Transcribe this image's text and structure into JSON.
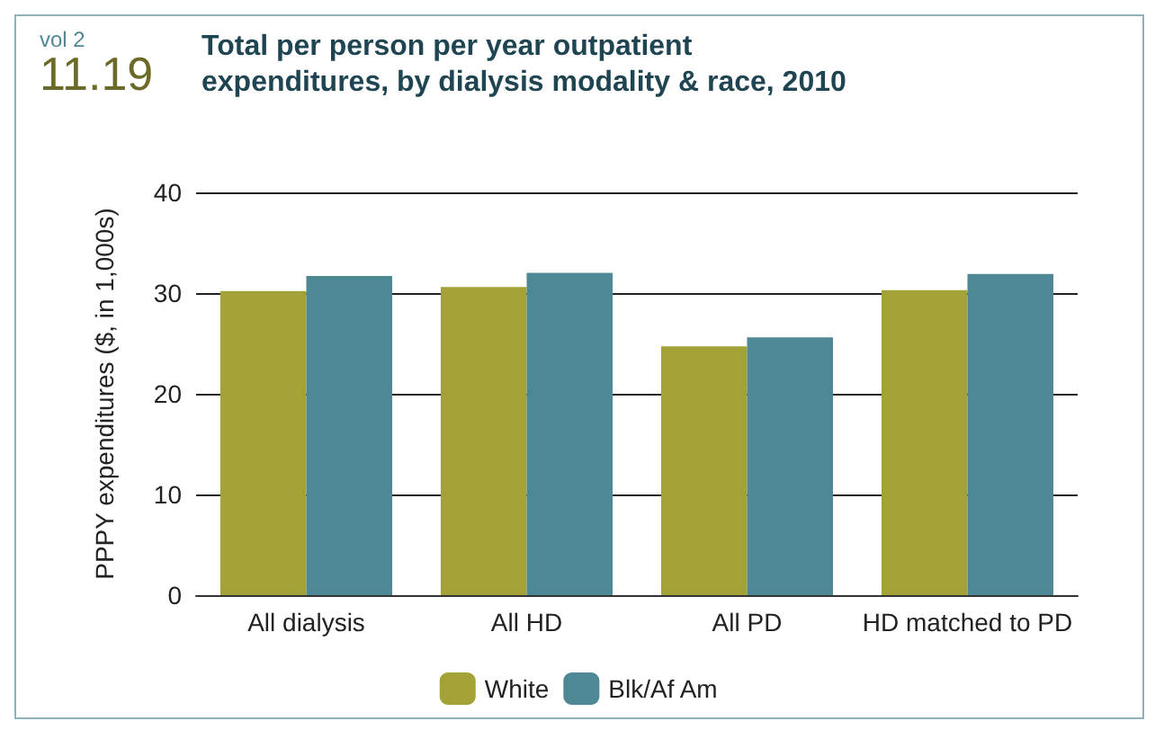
{
  "chart_data": {
    "type": "bar",
    "title": "Total per person per year outpatient\nexpenditures, by dialysis modality & race, 2010",
    "annotations": [
      "vol 2",
      "11.19"
    ],
    "ylabel": "PPPY expenditures ($, in 1,000s)",
    "categories": [
      "All dialysis",
      "All HD",
      "All PD",
      "HD matched to PD"
    ],
    "series": [
      {
        "name": "White",
        "color": "#a3a236",
        "values": [
          30.2,
          30.6,
          24.7,
          30.3
        ]
      },
      {
        "name": "Blk/Af Am",
        "color": "#4f8895",
        "values": [
          31.7,
          32.0,
          25.6,
          31.9
        ]
      }
    ],
    "ylim": [
      0,
      40
    ],
    "yticks": [
      0,
      10,
      20,
      30,
      40
    ],
    "grid": "y",
    "legend": "bottom"
  }
}
